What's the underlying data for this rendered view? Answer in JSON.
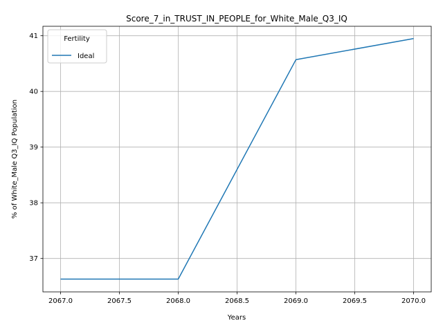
{
  "chart_data": {
    "type": "line",
    "title": "Score_7_in_TRUST_IN_PEOPLE_for_White_Male_Q3_IQ",
    "xlabel": "Years",
    "ylabel": "% of White_Male Q3_IQ Population",
    "x": [
      2067,
      2068,
      2069,
      2070
    ],
    "series": [
      {
        "name": "Ideal",
        "values": [
          36.63,
          36.63,
          40.57,
          40.95
        ],
        "color": "#1f77b4"
      }
    ],
    "xlim": [
      2066.85,
      2070.15
    ],
    "ylim": [
      36.4,
      41.17
    ],
    "xticks": [
      "2067.0",
      "2067.5",
      "2068.0",
      "2068.5",
      "2069.0",
      "2069.5",
      "2070.0"
    ],
    "xtick_values": [
      2067.0,
      2067.5,
      2068.0,
      2068.5,
      2069.0,
      2069.5,
      2070.0
    ],
    "yticks": [
      "37",
      "38",
      "39",
      "40",
      "41"
    ],
    "ytick_values": [
      37,
      38,
      39,
      40,
      41
    ],
    "grid": true,
    "legend": {
      "title": "Fertility",
      "placement": "top-left"
    }
  }
}
